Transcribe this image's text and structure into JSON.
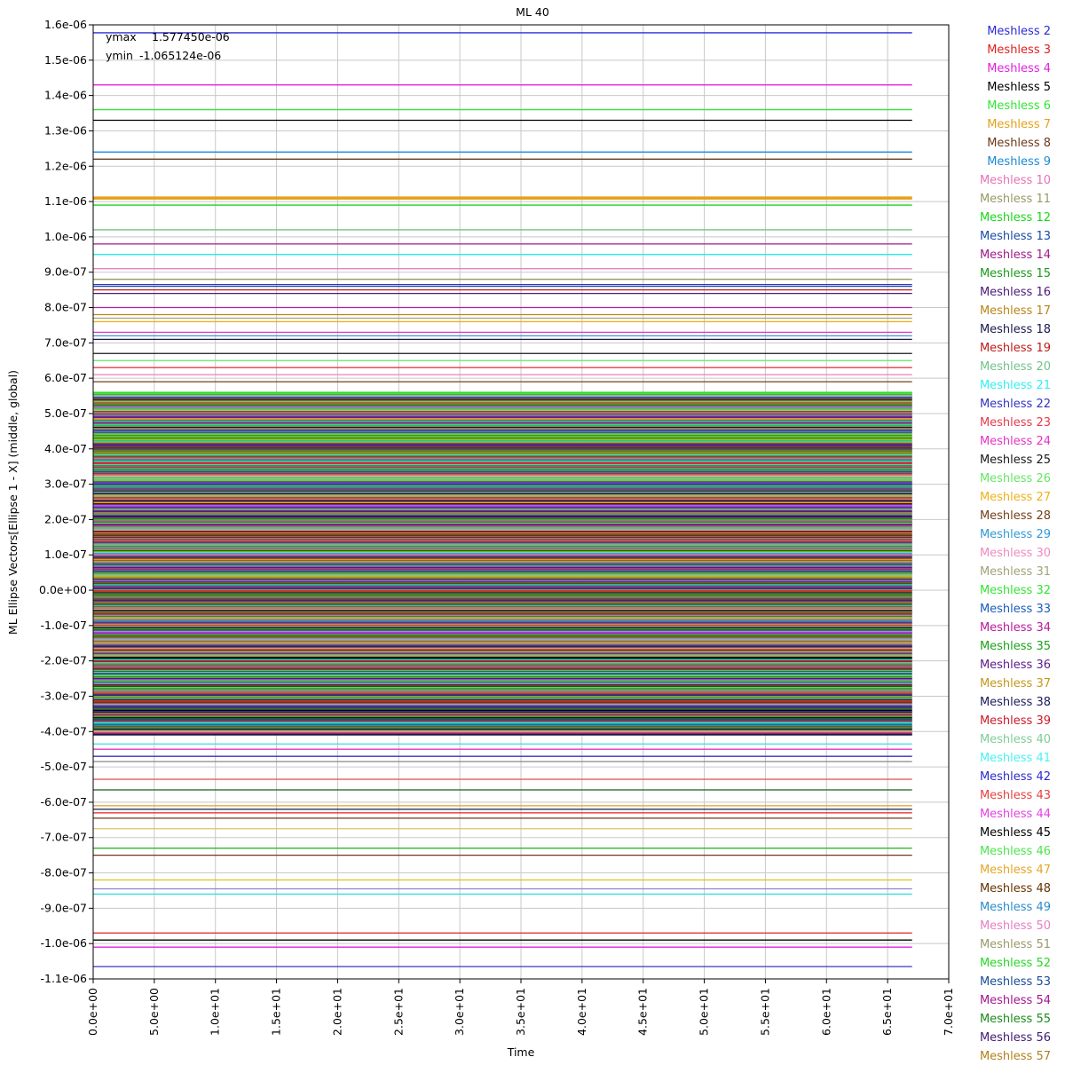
{
  "chart_data": {
    "type": "line",
    "title": "ML 40",
    "xlabel": "Time",
    "ylabel": "ML Ellipse Vectors[Ellipse 1 - X] (middle, global)",
    "xlim": [
      0,
      70
    ],
    "ylim": [
      -1.1e-06,
      1.6e-06
    ],
    "x_ticks": [
      "0.0e+00",
      "5.0e+00",
      "1.0e+01",
      "1.5e+01",
      "2.0e+01",
      "2.5e+01",
      "3.0e+01",
      "3.5e+01",
      "4.0e+01",
      "4.5e+01",
      "5.0e+01",
      "5.5e+01",
      "6.0e+01",
      "6.5e+01",
      "7.0e+01"
    ],
    "y_ticks": [
      "1.6e-06",
      "1.5e-06",
      "1.4e-06",
      "1.3e-06",
      "1.2e-06",
      "1.1e-06",
      "1.0e-06",
      "9.0e-07",
      "8.0e-07",
      "7.0e-07",
      "6.0e-07",
      "5.0e-07",
      "4.0e-07",
      "3.0e-07",
      "2.0e-07",
      "1.0e-07",
      "0.0e+00",
      "-1.0e-07",
      "-2.0e-07",
      "-3.0e-07",
      "-4.0e-07",
      "-5.0e-07",
      "-6.0e-07",
      "-7.0e-07",
      "-8.0e-07",
      "-9.0e-07",
      "-1.0e-06",
      "-1.1e-06"
    ],
    "grid": true,
    "legend_position": "right",
    "x_range_of_series": [
      0,
      67
    ],
    "annotations": [
      {
        "label": "ymax",
        "value": "1.577450e-06"
      },
      {
        "label": "ymin",
        "value": "-1.065124e-06"
      }
    ],
    "series": [
      {
        "name": "Meshless 2",
        "color": "#2b2bd6",
        "value": 1.5775e-06
      },
      {
        "name": "Meshless 3",
        "color": "#e02020",
        "value": 5.3e-07
      },
      {
        "name": "Meshless 4",
        "color": "#e020e0",
        "value": 1.43e-06
      },
      {
        "name": "Meshless 5",
        "color": "#000000",
        "value": 1.33e-06
      },
      {
        "name": "Meshless 6",
        "color": "#33e633",
        "value": 1.36e-06
      },
      {
        "name": "Meshless 7",
        "color": "#e6a01a",
        "value": 1.11e-06
      },
      {
        "name": "Meshless 8",
        "color": "#6b3a1a",
        "value": 1.22e-06
      },
      {
        "name": "Meshless 9",
        "color": "#1a8ad6",
        "value": 1.24e-06
      },
      {
        "name": "Meshless 10",
        "color": "#e673b8",
        "value": 9.1e-07
      },
      {
        "name": "Meshless 11",
        "color": "#999966",
        "value": 8.8e-07
      },
      {
        "name": "Meshless 12",
        "color": "#1ad61a",
        "value": 1.09e-06
      },
      {
        "name": "Meshless 13",
        "color": "#1a4ca8",
        "value": 8.6e-07
      },
      {
        "name": "Meshless 14",
        "color": "#a01a8a",
        "value": 9.8e-07
      },
      {
        "name": "Meshless 15",
        "color": "#1a991a",
        "value": 9.5e-07
      },
      {
        "name": "Meshless 16",
        "color": "#4a1a7a",
        "value": 8.4e-07
      },
      {
        "name": "Meshless 17",
        "color": "#b8861a",
        "value": 7.8e-07
      },
      {
        "name": "Meshless 18",
        "color": "#1a1a4c",
        "value": 7.1e-07
      },
      {
        "name": "Meshless 19",
        "color": "#c21a1a",
        "value": 8.5e-07
      },
      {
        "name": "Meshless 20",
        "color": "#73c28a",
        "value": 1.02e-06
      },
      {
        "name": "Meshless 21",
        "color": "#33f0f0",
        "value": 9.5e-07
      },
      {
        "name": "Meshless 22",
        "color": "#3333c2",
        "value": 8.65e-07
      },
      {
        "name": "Meshless 23",
        "color": "#e63a4c",
        "value": 6.3e-07
      },
      {
        "name": "Meshless 24",
        "color": "#e633c2",
        "value": 7.3e-07
      },
      {
        "name": "Meshless 25",
        "color": "#1a1a1a",
        "value": 6.7e-07
      },
      {
        "name": "Meshless 26",
        "color": "#66e666",
        "value": 6.5e-07
      },
      {
        "name": "Meshless 27",
        "color": "#f0b01a",
        "value": 7.6e-07
      },
      {
        "name": "Meshless 28",
        "color": "#73401a",
        "value": 5.9e-07
      },
      {
        "name": "Meshless 29",
        "color": "#3399d6",
        "value": 7.2e-07
      },
      {
        "name": "Meshless 30",
        "color": "#f08ac2",
        "value": 6.1e-07
      },
      {
        "name": "Meshless 31",
        "color": "#a3a37a",
        "value": 7.7e-07
      },
      {
        "name": "Meshless 32",
        "color": "#33e633",
        "value": 5.6e-07
      },
      {
        "name": "Meshless 33",
        "color": "#1a5cb8",
        "value": 4.5e-07
      },
      {
        "name": "Meshless 34",
        "color": "#b81a99",
        "value": 8e-07
      },
      {
        "name": "Meshless 35",
        "color": "#1aa31a",
        "value": 4.3e-07
      },
      {
        "name": "Meshless 36",
        "color": "#5c1a8a",
        "value": 4.9e-07
      },
      {
        "name": "Meshless 37",
        "color": "#c2991a",
        "value": 3.9e-07
      },
      {
        "name": "Meshless 38",
        "color": "#1a1a5c",
        "value": 4.1e-07
      },
      {
        "name": "Meshless 39",
        "color": "#cc1a2b",
        "value": 3.6e-07
      },
      {
        "name": "Meshless 40",
        "color": "#80cc99",
        "value": 3.2e-07
      },
      {
        "name": "Meshless 41",
        "color": "#4cf0f0",
        "value": 5.5e-07
      },
      {
        "name": "Meshless 42",
        "color": "#2b2bcc",
        "value": 3e-07
      },
      {
        "name": "Meshless 43",
        "color": "#e64040",
        "value": 2.6e-07
      },
      {
        "name": "Meshless 44",
        "color": "#e640e6",
        "value": 2.4e-07
      },
      {
        "name": "Meshless 45",
        "color": "#000000",
        "value": 2.1e-07
      },
      {
        "name": "Meshless 46",
        "color": "#4ce64c",
        "value": 1.9e-07
      },
      {
        "name": "Meshless 47",
        "color": "#e6a626",
        "value": 1.7e-07
      },
      {
        "name": "Meshless 48",
        "color": "#663300",
        "value": 1.5e-07
      },
      {
        "name": "Meshless 49",
        "color": "#2b8ccc",
        "value": 1.2e-07
      },
      {
        "name": "Meshless 50",
        "color": "#e680c2",
        "value": 1e-07
      },
      {
        "name": "Meshless 51",
        "color": "#99996b",
        "value": 8e-08
      },
      {
        "name": "Meshless 52",
        "color": "#26d926",
        "value": 5e-08
      },
      {
        "name": "Meshless 53",
        "color": "#1a4c99",
        "value": 3e-08
      },
      {
        "name": "Meshless 54",
        "color": "#a3168f",
        "value": 1e-08
      },
      {
        "name": "Meshless 55",
        "color": "#1a8c1a",
        "value": -1e-08
      },
      {
        "name": "Meshless 56",
        "color": "#401a73",
        "value": -3e-08
      },
      {
        "name": "Meshless 57",
        "color": "#b3801a",
        "value": -5e-08
      }
    ],
    "extra_lines": [
      {
        "color": "#3a3ab8",
        "value": -1.065124e-06
      },
      {
        "color": "#e020e0",
        "value": -1.01e-06
      },
      {
        "color": "#000000",
        "value": -9.9e-07
      },
      {
        "color": "#e02020",
        "value": -9.7e-07
      },
      {
        "color": "#33e0e0",
        "value": -8.6e-07
      },
      {
        "color": "#8888cc",
        "value": -8.45e-07
      },
      {
        "color": "#e0c020",
        "value": -8.2e-07
      },
      {
        "color": "#6b3a1a",
        "value": -7.5e-07
      },
      {
        "color": "#33b833",
        "value": -7.3e-07
      },
      {
        "color": "#e0c060",
        "value": -6.75e-07
      },
      {
        "color": "#6b3a1a",
        "value": -6.45e-07
      },
      {
        "color": "#e02020",
        "value": -6.3e-07
      },
      {
        "color": "#1a1a4c",
        "value": -6.2e-07
      },
      {
        "color": "#e0a020",
        "value": -6.1e-07
      },
      {
        "color": "#1a5c1a",
        "value": -5.65e-07
      },
      {
        "color": "#e06060",
        "value": -5.35e-07
      },
      {
        "color": "#888888",
        "value": -4.85e-07
      },
      {
        "color": "#3333c2",
        "value": -4.7e-07
      },
      {
        "color": "#e633c2",
        "value": -4.5e-07
      },
      {
        "color": "#33e0e0",
        "value": -4.35e-07
      },
      {
        "color": "#1a991a",
        "value": -3.9e-07
      },
      {
        "color": "#1a1a1a",
        "value": -3.6e-07
      },
      {
        "color": "#e63a4c",
        "value": -2.9e-07
      },
      {
        "color": "#4a1a7a",
        "value": -2.5e-07
      },
      {
        "color": "#c21a1a",
        "value": -2e-07
      },
      {
        "color": "#1a1a4c",
        "value": -1.6e-07
      },
      {
        "color": "#e020e0",
        "value": -1.2e-07
      },
      {
        "color": "#73c28a",
        "value": -8e-08
      }
    ]
  }
}
